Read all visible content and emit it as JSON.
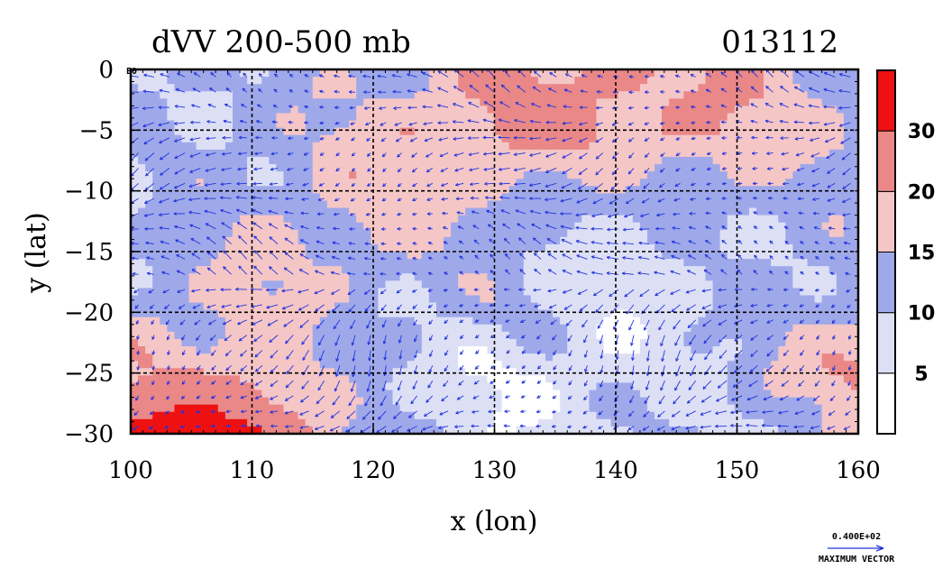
{
  "chart_data": {
    "type": "heatmap",
    "title": "dVV 200-500 mb",
    "timestamp": "013112",
    "xlabel": "x (lon)",
    "ylabel": "y (lat)",
    "xlim": [
      100,
      160
    ],
    "ylim": [
      -30,
      0
    ],
    "x_ticks": [
      100,
      110,
      120,
      130,
      140,
      150,
      160
    ],
    "y_ticks": [
      0,
      -5,
      -10,
      -15,
      -20,
      -25,
      -30
    ],
    "x_tick_labels": [
      "100",
      "110",
      "120",
      "130",
      "140",
      "150",
      "160"
    ],
    "y_tick_labels": [
      "0",
      "−5",
      "−10",
      "−15",
      "−20",
      "−25",
      "−30"
    ],
    "grid": true,
    "colorbar": {
      "levels": [
        0,
        5,
        10,
        15,
        20,
        30,
        40
      ],
      "tick_labels": [
        "5",
        "10",
        "15",
        "20",
        "30"
      ],
      "colors": [
        "#ffffff",
        "#dde0f5",
        "#9fa9ea",
        "#f5c6c6",
        "#ea8888",
        "#ee1111"
      ]
    },
    "vector_legend": {
      "value": "0.400E+02",
      "label": "MAXIMUM VECTOR",
      "color": "#2233dd"
    },
    "field_samples": {
      "lon": [
        100,
        110,
        120,
        130,
        140,
        150,
        160
      ],
      "lat": [
        0,
        -5,
        -10,
        -15,
        -20,
        -25,
        -30
      ],
      "values": [
        [
          12,
          10,
          14,
          20,
          22,
          19,
          13
        ],
        [
          10,
          12,
          17,
          22,
          21,
          20,
          14
        ],
        [
          9,
          13,
          18,
          17,
          11,
          14,
          12
        ],
        [
          11,
          15,
          16,
          11,
          7,
          10,
          13
        ],
        [
          14,
          17,
          11,
          12,
          6,
          10,
          16
        ],
        [
          18,
          21,
          10,
          5,
          7,
          11,
          22
        ],
        [
          35,
          32,
          12,
          6,
          9,
          10,
          14
        ]
      ]
    }
  },
  "labels": {
    "corner_mark": "E0"
  }
}
